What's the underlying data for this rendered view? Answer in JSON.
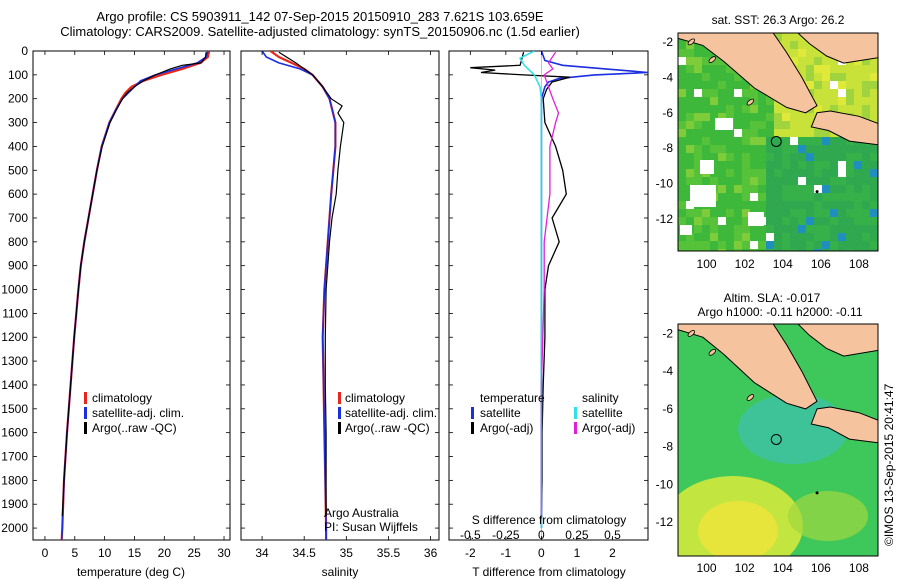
{
  "title_line1": "Argo profile: CS 5903911_142 07-Sep-2015 20150910_283 7.621S 103.659E",
  "title_line2": "Climatology: CARS2009. Satellite-adjusted climatology: synTS_20150906.nc (1.5d earlier)",
  "sst_map_title": "sat. SST: 26.3 Argo: 26.2",
  "sla_map_title_line1": "Altim. SLA: -0.017",
  "sla_map_title_line2": "Argo h1000: -0.11 h2000: -0.11",
  "side_stamp": "©IMOS 13-Sep-2015 20:41:47",
  "credit_line1": "Argo Australia",
  "credit_line2": "PI: Susan Wijffels",
  "colors": {
    "climatology": "#e8261d",
    "satellite": "#1b2ee0",
    "argo": "#000000",
    "satellite_s": "#33e0e8",
    "argo_s": "#e01fd6",
    "land": "#f5c49e",
    "sea_sst": "#3db83a",
    "sea_sla": "#3ec75a"
  },
  "chart_data": [
    {
      "type": "line",
      "panel": "temperature",
      "xlabel": "temperature (deg C)",
      "x_ticks": [
        0,
        5,
        10,
        15,
        20,
        25,
        30
      ],
      "xlim": [
        -2,
        31
      ],
      "y_ticks": [
        0,
        100,
        200,
        300,
        400,
        500,
        600,
        700,
        800,
        900,
        1000,
        1100,
        1200,
        1300,
        1400,
        1500,
        1600,
        1700,
        1800,
        1900,
        2000
      ],
      "ylim": [
        2050,
        0
      ],
      "legend": [
        "climatology",
        "satellite-adj. clim.",
        "Argo(..raw -QC)"
      ],
      "series": [
        {
          "name": "climatology",
          "depth": [
            0,
            25,
            50,
            75,
            100,
            125,
            150,
            175,
            200,
            250,
            300,
            400,
            500,
            600,
            700,
            800,
            900,
            1000,
            1200,
            1400,
            1600,
            1800,
            2000,
            2050
          ],
          "values": [
            27.5,
            27.3,
            26.0,
            23.0,
            19.5,
            16.5,
            14.5,
            13.5,
            12.8,
            11.8,
            10.8,
            9.5,
            8.7,
            8.0,
            7.3,
            6.6,
            6.0,
            5.6,
            4.9,
            4.3,
            3.7,
            3.2,
            2.9,
            2.8
          ]
        },
        {
          "name": "satellite-adj. clim.",
          "depth": [
            0,
            25,
            50,
            75,
            100,
            125,
            150,
            175,
            200,
            250,
            300,
            400,
            500,
            600,
            700,
            800,
            900,
            1000,
            1200,
            1400,
            1600,
            1800,
            2000,
            2050
          ],
          "values": [
            27.3,
            27.0,
            25.5,
            22.0,
            18.5,
            16.0,
            15.0,
            14.0,
            13.0,
            11.8,
            10.8,
            9.5,
            8.7,
            8.0,
            7.3,
            6.6,
            6.0,
            5.6,
            4.9,
            4.3,
            3.7,
            3.2,
            2.9,
            2.8
          ]
        },
        {
          "name": "Argo(..raw -QC)",
          "depth": [
            5,
            25,
            50,
            60,
            75,
            90,
            100,
            125,
            150,
            175,
            200,
            250,
            300,
            400,
            500,
            600,
            700,
            800,
            900,
            1000,
            1200,
            1400,
            1600,
            1800,
            1950
          ],
          "values": [
            27.0,
            26.9,
            26.2,
            23.0,
            21.0,
            19.5,
            18.5,
            16.5,
            15.0,
            13.8,
            13.0,
            11.9,
            10.9,
            9.6,
            8.7,
            8.0,
            7.3,
            6.6,
            6.0,
            5.6,
            4.9,
            4.3,
            3.7,
            3.2,
            2.9
          ]
        }
      ]
    },
    {
      "type": "line",
      "panel": "salinity",
      "xlabel": "salinity",
      "x_ticks": [
        34,
        34.5,
        35,
        35.5,
        36
      ],
      "xlim": [
        33.75,
        36.1
      ],
      "ylim": [
        2050,
        0
      ],
      "legend": [
        "climatology",
        "satellite-adj. clim.",
        "Argo(..raw -QC)"
      ],
      "series": [
        {
          "name": "climatology",
          "depth": [
            0,
            25,
            50,
            75,
            100,
            150,
            200,
            300,
            400,
            600,
            800,
            1000,
            1200,
            1400,
            1600,
            1800,
            2000,
            2050
          ],
          "values": [
            34.1,
            34.2,
            34.35,
            34.5,
            34.6,
            34.72,
            34.8,
            34.87,
            34.87,
            34.82,
            34.78,
            34.74,
            34.72,
            34.73,
            34.74,
            34.75,
            34.76,
            34.76
          ]
        },
        {
          "name": "satellite-adj. clim.",
          "depth": [
            0,
            25,
            50,
            75,
            100,
            150,
            200,
            300,
            400,
            600,
            800,
            1000,
            1200,
            1400,
            1600,
            1800,
            2000,
            2050
          ],
          "values": [
            34.0,
            34.05,
            34.2,
            34.45,
            34.6,
            34.72,
            34.8,
            34.87,
            34.87,
            34.82,
            34.78,
            34.74,
            34.72,
            34.73,
            34.74,
            34.75,
            34.76,
            34.76
          ]
        },
        {
          "name": "Argo(..raw -QC)",
          "depth": [
            5,
            50,
            100,
            150,
            200,
            230,
            260,
            300,
            400,
            500,
            600,
            700,
            800,
            900,
            1000,
            1200,
            1400,
            1600,
            1800,
            1950
          ],
          "values": [
            34.2,
            34.4,
            34.6,
            34.72,
            34.82,
            34.95,
            34.9,
            34.97,
            34.93,
            34.9,
            34.88,
            34.83,
            34.8,
            34.78,
            34.76,
            34.75,
            34.75,
            34.76,
            34.76,
            34.76
          ]
        }
      ]
    },
    {
      "type": "line",
      "panel": "difference",
      "xlabel_top": "S difference from climatology",
      "x_ticks_top": [
        "-0.5",
        "-0.25",
        "0",
        "0.25",
        "0.5"
      ],
      "xlabel": "T difference from climatology",
      "x_ticks": [
        "-2",
        "-1",
        "0",
        "1",
        "2"
      ],
      "xlim": [
        -2.6,
        3
      ],
      "ylim": [
        2050,
        0
      ],
      "legend_temperature_heading": "temperature",
      "legend_salinity_heading": "salinity",
      "legend": [
        "satellite",
        "Argo(-adj)",
        "satellite",
        "Argo(-adj)"
      ],
      "series": [
        {
          "name": "satellite",
          "depth": [
            0,
            40,
            60,
            75,
            90,
            100,
            115,
            130,
            150,
            200,
            300,
            2000
          ],
          "values": [
            0,
            0.1,
            0.6,
            1.8,
            3.0,
            1.5,
            0.5,
            0.2,
            0.1,
            0,
            0,
            0
          ]
        },
        {
          "name": "Argo(-adj)",
          "depth": [
            5,
            60,
            70,
            80,
            90,
            100,
            110,
            130,
            160,
            200,
            300,
            400,
            500,
            600,
            700,
            800,
            900,
            1000,
            1200,
            1400,
            1600,
            1800,
            1950
          ],
          "values": [
            -0.5,
            -0.6,
            -2.0,
            -1.3,
            -1.7,
            -0.5,
            0.8,
            0.3,
            0.15,
            0.05,
            0.1,
            0.4,
            0.6,
            0.7,
            0.3,
            0.5,
            0.2,
            0.1,
            0.1,
            0.05,
            0.02,
            0.02,
            0
          ]
        },
        {
          "name": "satellite",
          "depth": [
            0,
            30,
            60,
            100,
            150,
            200,
            300,
            2000
          ],
          "values": [
            -0.05,
            -0.15,
            -0.12,
            -0.05,
            -0.01,
            0,
            0,
            0
          ]
        },
        {
          "name": "Argo(-adj)",
          "depth": [
            5,
            50,
            75,
            100,
            150,
            200,
            260,
            300,
            400,
            600,
            800,
            1000,
            1400,
            1800,
            1950
          ],
          "values": [
            0.1,
            0.05,
            0.08,
            0.02,
            0.05,
            0.08,
            0.12,
            0.1,
            0.06,
            0.06,
            0.02,
            0.02,
            0,
            0,
            0
          ]
        }
      ]
    },
    {
      "type": "heatmap",
      "panel": "sst_map",
      "title": "sat. SST: 26.3 Argo: 26.2",
      "x_ticks": [
        100,
        102,
        104,
        106,
        108
      ],
      "y_ticks": [
        -2,
        -4,
        -6,
        -8,
        -10,
        -12
      ],
      "float_lon": 103.659,
      "float_lat": -7.621
    },
    {
      "type": "heatmap",
      "panel": "sla_map",
      "title": "Altim. SLA: -0.017 / Argo h1000: -0.11 h2000: -0.11",
      "x_ticks": [
        100,
        102,
        104,
        106,
        108
      ],
      "y_ticks": [
        -2,
        -4,
        -6,
        -8,
        -10,
        -12
      ],
      "float_lon": 103.659,
      "float_lat": -7.621
    }
  ]
}
